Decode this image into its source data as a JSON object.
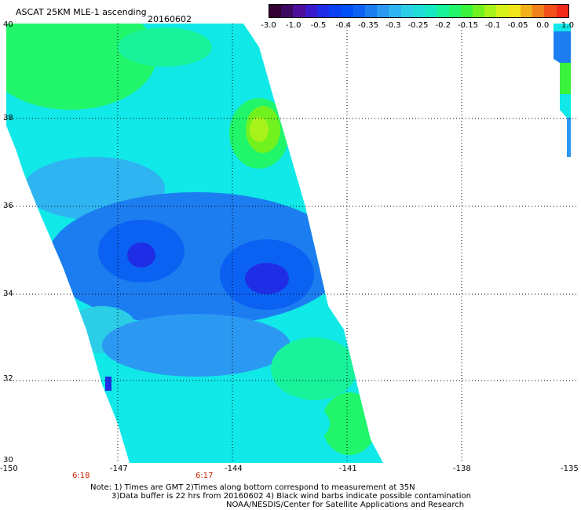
{
  "header": {
    "title": "ASCAT 25KM MLE-1 ascending",
    "date": "20160602"
  },
  "colorbar": {
    "colors": [
      "#330033",
      "#3c0a60",
      "#4d0f99",
      "#3a1ccc",
      "#1f2ee6",
      "#0b3ff2",
      "#004ef5",
      "#0b62f2",
      "#1c7df0",
      "#2b99f2",
      "#2fb4f2",
      "#2ccde6",
      "#1fdcd9",
      "#16e8c2",
      "#18f29a",
      "#21f56a",
      "#39f23b",
      "#71f21f",
      "#a8f21a",
      "#d6f21a",
      "#f2e61a",
      "#f2b01a",
      "#f2801a",
      "#f24f1a",
      "#f22a1a"
    ],
    "labels": [
      "-3.0",
      "-1.0",
      "-0.5",
      "-0.4",
      "-0.35",
      "-0.3",
      "-0.25",
      "-0.2",
      "-0.15",
      "-0.1",
      "-0.05",
      "0.0",
      "1.0"
    ]
  },
  "axes": {
    "x_labels": [
      "-150",
      "-147",
      "-144",
      "-141",
      "-138",
      "-135"
    ],
    "y_labels": [
      "40",
      "38",
      "36",
      "34",
      "32",
      "30"
    ],
    "x_range": [
      -150,
      -135
    ],
    "y_range": [
      30,
      40
    ]
  },
  "times": [
    "6:18",
    "6:17"
  ],
  "notes": [
    "Note: 1) Times are GMT 2)Times along bottom correspond to measurement at 35N",
    "3)Data buffer is 22 hrs from 20160602 4) Black wind barbs indicate possible contamination",
    "NOAA/NESDIS/Center for Satellite Applications and Research"
  ]
}
